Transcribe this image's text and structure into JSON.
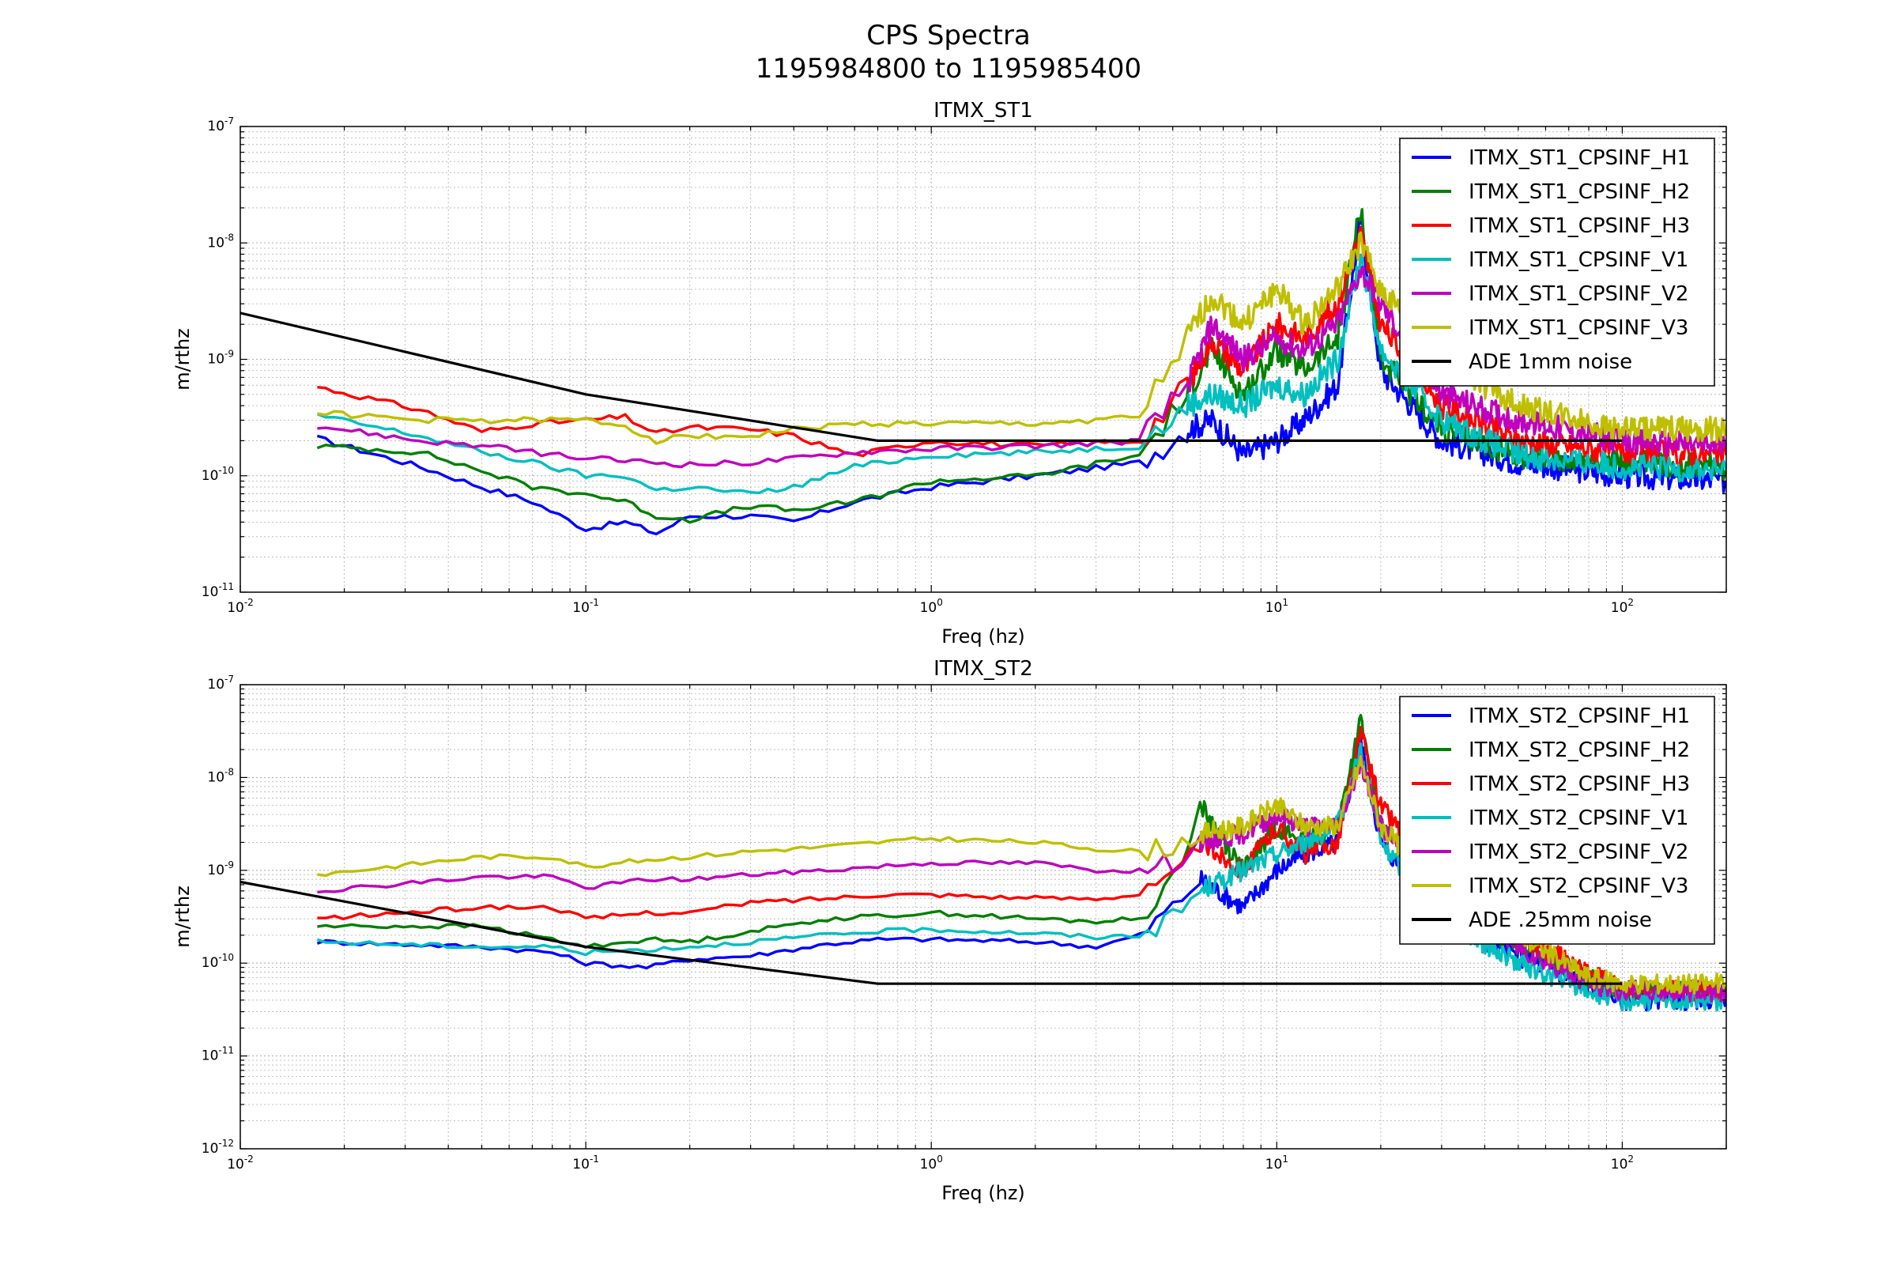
{
  "figure": {
    "title": "CPS Spectra",
    "subtitle": "1195984800 to 1195985400"
  },
  "colors": {
    "H1": "#0000ff",
    "H2": "#008000",
    "H3": "#ff0000",
    "V1": "#00bfbf",
    "V2": "#bf00bf",
    "V3": "#bfbf00",
    "noise": "#000000",
    "grid": "#b0b0b0"
  },
  "chart_data": [
    {
      "type": "line",
      "title": "ITMX_ST1",
      "xlabel": "Freq (hz)",
      "ylabel": "m/rthz",
      "xscale": "log",
      "yscale": "log",
      "xlim": [
        0.01,
        200
      ],
      "ylim": [
        1e-11,
        1e-07
      ],
      "grid": true,
      "legend_position": "top-right",
      "xticks": [
        {
          "value": 0.01,
          "base": "10",
          "exp": "-2"
        },
        {
          "value": 0.1,
          "base": "10",
          "exp": "-1"
        },
        {
          "value": 1,
          "base": "10",
          "exp": "0"
        },
        {
          "value": 10,
          "base": "10",
          "exp": "1"
        },
        {
          "value": 100,
          "base": "10",
          "exp": "2"
        }
      ],
      "yticks": [
        {
          "value": 1e-11,
          "base": "10",
          "exp": "-11"
        },
        {
          "value": 1e-10,
          "base": "10",
          "exp": "-10"
        },
        {
          "value": 1e-09,
          "base": "10",
          "exp": "-9"
        },
        {
          "value": 1e-08,
          "base": "10",
          "exp": "-8"
        },
        {
          "value": 1e-07,
          "base": "10",
          "exp": "-7"
        }
      ],
      "series": [
        {
          "name": "ITMX_ST1_CPSINF_H1",
          "color": "#0000ff",
          "x": [
            0.0167,
            0.033,
            0.05,
            0.07,
            0.1,
            0.13,
            0.16,
            0.2,
            0.3,
            0.4,
            0.6,
            1,
            2,
            4,
            5.5,
            6.5,
            8,
            10,
            12,
            15,
            17.5,
            20,
            30,
            50,
            100,
            200
          ],
          "y": [
            2.1e-10,
            1.2e-10,
            8e-11,
            6e-11,
            3.5e-11,
            4e-11,
            3.2e-11,
            4.5e-11,
            4.5e-11,
            4e-11,
            6e-11,
            8e-11,
            1e-10,
            1.3e-10,
            2.5e-10,
            3e-10,
            1.5e-10,
            2e-10,
            3e-10,
            6e-10,
            1.6e-08,
            8e-10,
            2e-10,
            1.3e-10,
            1e-10,
            9e-11
          ]
        },
        {
          "name": "ITMX_ST1_CPSINF_H2",
          "color": "#008000",
          "x": [
            0.0167,
            0.033,
            0.05,
            0.07,
            0.1,
            0.13,
            0.16,
            0.2,
            0.3,
            0.4,
            0.6,
            1,
            2,
            4,
            5.5,
            6.5,
            8,
            10,
            12,
            15,
            17.5,
            20,
            30,
            50,
            100,
            200
          ],
          "y": [
            1.8e-10,
            1.6e-10,
            1.1e-10,
            8e-11,
            7e-11,
            6e-11,
            4.5e-11,
            4.2e-11,
            5.5e-11,
            5e-11,
            6e-11,
            9e-11,
            1e-10,
            1.5e-10,
            5e-10,
            1.2e-09,
            5e-10,
            1.2e-09,
            8e-10,
            1.5e-09,
            2e-08,
            1e-09,
            2.5e-10,
            1.5e-10,
            1.3e-10,
            1.2e-10
          ]
        },
        {
          "name": "ITMX_ST1_CPSINF_H3",
          "color": "#ff0000",
          "x": [
            0.0167,
            0.033,
            0.05,
            0.07,
            0.1,
            0.13,
            0.16,
            0.2,
            0.3,
            0.4,
            0.6,
            1,
            2,
            4,
            5.5,
            6.5,
            8,
            10,
            12,
            15,
            17.5,
            20,
            30,
            50,
            100,
            200
          ],
          "y": [
            5.8e-10,
            3.7e-10,
            2.4e-10,
            2.8e-10,
            3e-10,
            3.2e-10,
            2.3e-10,
            2.6e-10,
            2.5e-10,
            2.2e-10,
            1.5e-10,
            2e-10,
            1.8e-10,
            2e-10,
            6e-10,
            1.5e-09,
            8e-10,
            2e-09,
            1.5e-09,
            3e-09,
            1.2e-08,
            2e-09,
            4e-10,
            2e-10,
            1.6e-10,
            1.5e-10
          ]
        },
        {
          "name": "ITMX_ST1_CPSINF_V1",
          "color": "#00bfbf",
          "x": [
            0.0167,
            0.033,
            0.05,
            0.07,
            0.1,
            0.13,
            0.16,
            0.2,
            0.3,
            0.4,
            0.6,
            1,
            2,
            4,
            5.5,
            6.5,
            8,
            10,
            12,
            15,
            17.5,
            20,
            30,
            50,
            100,
            200
          ],
          "y": [
            3.3e-10,
            2.2e-10,
            1.6e-10,
            1.3e-10,
            1e-10,
            1e-10,
            7.5e-11,
            8e-11,
            7e-11,
            8e-11,
            1.2e-10,
            1.5e-10,
            1.6e-10,
            1.8e-10,
            4e-10,
            5e-10,
            4e-10,
            6e-10,
            5e-10,
            1e-09,
            8e-09,
            1.2e-09,
            3e-10,
            1.5e-10,
            1.2e-10,
            1.1e-10
          ]
        },
        {
          "name": "ITMX_ST1_CPSINF_V2",
          "color": "#bf00bf",
          "x": [
            0.0167,
            0.033,
            0.05,
            0.07,
            0.1,
            0.13,
            0.16,
            0.2,
            0.3,
            0.4,
            0.6,
            1,
            2,
            4,
            5.5,
            6.5,
            8,
            10,
            12,
            15,
            17.5,
            20,
            30,
            50,
            100,
            200
          ],
          "y": [
            2.7e-10,
            2e-10,
            1.8e-10,
            1.6e-10,
            1.4e-10,
            1.35e-10,
            1.3e-10,
            1.25e-10,
            1.3e-10,
            1.4e-10,
            1.6e-10,
            1.7e-10,
            1.8e-10,
            2e-10,
            6e-10,
            2e-09,
            1e-09,
            1.5e-09,
            1.2e-09,
            2e-09,
            6e-09,
            3e-09,
            5e-10,
            3e-10,
            2e-10,
            1.8e-10
          ]
        },
        {
          "name": "ITMX_ST1_CPSINF_V3",
          "color": "#bfbf00",
          "x": [
            0.0167,
            0.033,
            0.05,
            0.07,
            0.1,
            0.13,
            0.16,
            0.2,
            0.3,
            0.4,
            0.6,
            1,
            2,
            4,
            5.5,
            6.5,
            8,
            10,
            12,
            15,
            17.5,
            20,
            30,
            50,
            100,
            200
          ],
          "y": [
            3.5e-10,
            3e-10,
            3e-10,
            3e-10,
            3e-10,
            2.7e-10,
            2e-10,
            2.2e-10,
            2.2e-10,
            2.5e-10,
            2.8e-10,
            2.8e-10,
            2.8e-10,
            3.2e-10,
            1.5e-09,
            3.5e-09,
            2e-09,
            4e-09,
            2e-09,
            4e-09,
            1e-08,
            4e-09,
            1e-09,
            4e-10,
            2.5e-10,
            2.5e-10
          ]
        },
        {
          "name": "ADE 1mm noise",
          "color": "#000000",
          "x": [
            0.01,
            0.1,
            0.7,
            100
          ],
          "y": [
            2.5e-09,
            5e-10,
            2e-10,
            2e-10
          ]
        }
      ]
    },
    {
      "type": "line",
      "title": "ITMX_ST2",
      "xlabel": "Freq (hz)",
      "ylabel": "m/rthz",
      "xscale": "log",
      "yscale": "log",
      "xlim": [
        0.01,
        200
      ],
      "ylim": [
        1e-12,
        1e-07
      ],
      "grid": true,
      "legend_position": "top-right",
      "xticks": [
        {
          "value": 0.01,
          "base": "10",
          "exp": "-2"
        },
        {
          "value": 0.1,
          "base": "10",
          "exp": "-1"
        },
        {
          "value": 1,
          "base": "10",
          "exp": "0"
        },
        {
          "value": 10,
          "base": "10",
          "exp": "1"
        },
        {
          "value": 100,
          "base": "10",
          "exp": "2"
        }
      ],
      "yticks": [
        {
          "value": 1e-12,
          "base": "10",
          "exp": "-12"
        },
        {
          "value": 1e-11,
          "base": "10",
          "exp": "-11"
        },
        {
          "value": 1e-10,
          "base": "10",
          "exp": "-10"
        },
        {
          "value": 1e-09,
          "base": "10",
          "exp": "-9"
        },
        {
          "value": 1e-08,
          "base": "10",
          "exp": "-8"
        },
        {
          "value": 1e-07,
          "base": "10",
          "exp": "-7"
        }
      ],
      "series": [
        {
          "name": "ITMX_ST2_CPSINF_H1",
          "color": "#0000ff",
          "x": [
            0.0167,
            0.05,
            0.08,
            0.1,
            0.15,
            0.2,
            0.3,
            0.5,
            0.7,
            1,
            2,
            3,
            4,
            5,
            6,
            8,
            10,
            12,
            15,
            17.5,
            20,
            30,
            50,
            80,
            100,
            200
          ],
          "y": [
            1.7e-10,
            1.5e-10,
            1.3e-10,
            1e-10,
            9e-11,
            1.1e-10,
            1.2e-10,
            1.6e-10,
            1.8e-10,
            1.8e-10,
            1.7e-10,
            1.5e-10,
            2e-10,
            4e-10,
            8e-10,
            4e-10,
            1e-09,
            1.5e-09,
            2e-09,
            2.5e-08,
            2e-09,
            3e-10,
            1.2e-10,
            6e-11,
            4e-11,
            4e-11
          ]
        },
        {
          "name": "ITMX_ST2_CPSINF_H2",
          "color": "#008000",
          "x": [
            0.0167,
            0.05,
            0.08,
            0.1,
            0.15,
            0.2,
            0.3,
            0.5,
            0.7,
            1,
            2,
            3,
            4,
            5,
            6,
            8,
            10,
            12,
            15,
            17.5,
            20,
            30,
            50,
            80,
            100,
            200
          ],
          "y": [
            2.5e-10,
            2.5e-10,
            1.8e-10,
            1.5e-10,
            1.8e-10,
            1.7e-10,
            2.2e-10,
            3e-10,
            3.2e-10,
            3.5e-10,
            3e-10,
            2.8e-10,
            3e-10,
            8e-10,
            5e-09,
            1e-09,
            3e-09,
            2e-09,
            3e-09,
            4e-08,
            3e-09,
            4e-10,
            1.5e-10,
            7e-11,
            5e-11,
            5e-11
          ]
        },
        {
          "name": "ITMX_ST2_CPSINF_H3",
          "color": "#ff0000",
          "x": [
            0.0167,
            0.05,
            0.08,
            0.1,
            0.15,
            0.2,
            0.3,
            0.5,
            0.7,
            1,
            2,
            3,
            4,
            5,
            6,
            8,
            10,
            12,
            15,
            17.5,
            20,
            30,
            50,
            80,
            100,
            200
          ],
          "y": [
            3e-10,
            4e-10,
            4e-10,
            3e-10,
            3.5e-10,
            3.5e-10,
            4.5e-10,
            5e-10,
            5.5e-10,
            5.5e-10,
            5e-10,
            5e-10,
            5.5e-10,
            8e-10,
            2e-09,
            1e-09,
            3e-09,
            1.5e-09,
            2e-09,
            3e-08,
            5e-09,
            8e-10,
            2e-10,
            8e-11,
            5e-11,
            5e-11
          ]
        },
        {
          "name": "ITMX_ST2_CPSINF_V1",
          "color": "#00bfbf",
          "x": [
            0.0167,
            0.05,
            0.08,
            0.1,
            0.15,
            0.2,
            0.3,
            0.5,
            0.7,
            1,
            2,
            3,
            4,
            5,
            6,
            8,
            10,
            12,
            15,
            17.5,
            20,
            30,
            50,
            80,
            100,
            200
          ],
          "y": [
            1.7e-10,
            1.5e-10,
            1.5e-10,
            1.3e-10,
            1.4e-10,
            1.5e-10,
            1.7e-10,
            2e-10,
            2.2e-10,
            2.3e-10,
            2.1e-10,
            1.9e-10,
            2e-10,
            3e-10,
            6e-10,
            1e-09,
            1.5e-09,
            2e-09,
            3e-09,
            2e-08,
            2e-09,
            3e-10,
            1e-10,
            5e-11,
            4e-11,
            4e-11
          ]
        },
        {
          "name": "ITMX_ST2_CPSINF_V2",
          "color": "#bf00bf",
          "x": [
            0.0167,
            0.05,
            0.08,
            0.1,
            0.15,
            0.2,
            0.3,
            0.5,
            0.7,
            1,
            2,
            3,
            4,
            5,
            6,
            8,
            10,
            12,
            15,
            17.5,
            20,
            30,
            50,
            80,
            100,
            200
          ],
          "y": [
            6e-10,
            8.5e-10,
            8.5e-10,
            6.5e-10,
            8e-10,
            8e-10,
            9e-10,
            1e-09,
            1.1e-09,
            1.2e-09,
            1.2e-09,
            1e-09,
            1e-09,
            1.2e-09,
            2e-09,
            2.5e-09,
            4e-09,
            3e-09,
            3e-09,
            1.5e-08,
            3e-09,
            5e-10,
            1.5e-10,
            6e-11,
            5e-11,
            5e-11
          ]
        },
        {
          "name": "ITMX_ST2_CPSINF_V3",
          "color": "#bfbf00",
          "x": [
            0.0167,
            0.05,
            0.08,
            0.1,
            0.15,
            0.2,
            0.3,
            0.5,
            0.7,
            1,
            2,
            3,
            4,
            5,
            6,
            8,
            10,
            12,
            15,
            17.5,
            20,
            30,
            50,
            80,
            100,
            200
          ],
          "y": [
            9e-10,
            1.4e-09,
            1.4e-09,
            1.1e-09,
            1.3e-09,
            1.4e-09,
            1.6e-09,
            1.8e-09,
            2e-09,
            2.2e-09,
            2e-09,
            1.7e-09,
            1.6e-09,
            1.8e-09,
            2.5e-09,
            3e-09,
            5e-09,
            3e-09,
            3e-09,
            1.5e-08,
            3e-09,
            6e-10,
            2e-10,
            7e-11,
            6e-11,
            6e-11
          ]
        },
        {
          "name": "ADE .25mm noise",
          "color": "#000000",
          "x": [
            0.01,
            0.1,
            0.7,
            100
          ],
          "y": [
            7.5e-10,
            1.5e-10,
            6e-11,
            6e-11
          ]
        }
      ]
    }
  ]
}
